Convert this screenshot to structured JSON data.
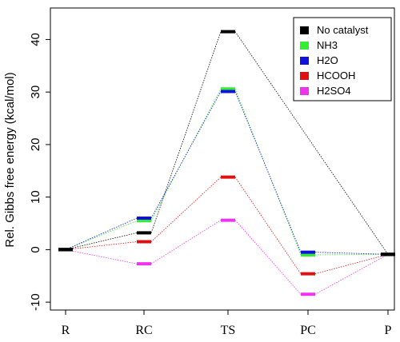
{
  "chart_data": {
    "type": "line",
    "ylabel": "Rel. Gibbs free energy (kcal/mol)",
    "xlabel": "",
    "categories": [
      "R",
      "RC",
      "TS",
      "PC",
      "P"
    ],
    "ylim": [
      -11.5,
      46
    ],
    "yticks": [
      -10,
      0,
      10,
      20,
      30,
      40
    ],
    "grid": false,
    "legend_position": "top-right",
    "series": [
      {
        "name": "No catalyst",
        "color": "#000000",
        "values": [
          0,
          3.2,
          41.5,
          null,
          -0.9
        ]
      },
      {
        "name": "NH3",
        "color": "#33ee33",
        "values": [
          0,
          5.5,
          30.6,
          -1.0,
          -0.9
        ]
      },
      {
        "name": "H2O",
        "color": "#1111dd",
        "values": [
          0,
          6.0,
          30.1,
          -0.5,
          -0.9
        ]
      },
      {
        "name": "HCOOH",
        "color": "#dd1111",
        "values": [
          0,
          1.5,
          13.8,
          -4.6,
          -0.9
        ]
      },
      {
        "name": "H2SO4",
        "color": "#ee33ee",
        "values": [
          0,
          -2.7,
          5.6,
          -8.5,
          -0.9
        ]
      }
    ]
  }
}
